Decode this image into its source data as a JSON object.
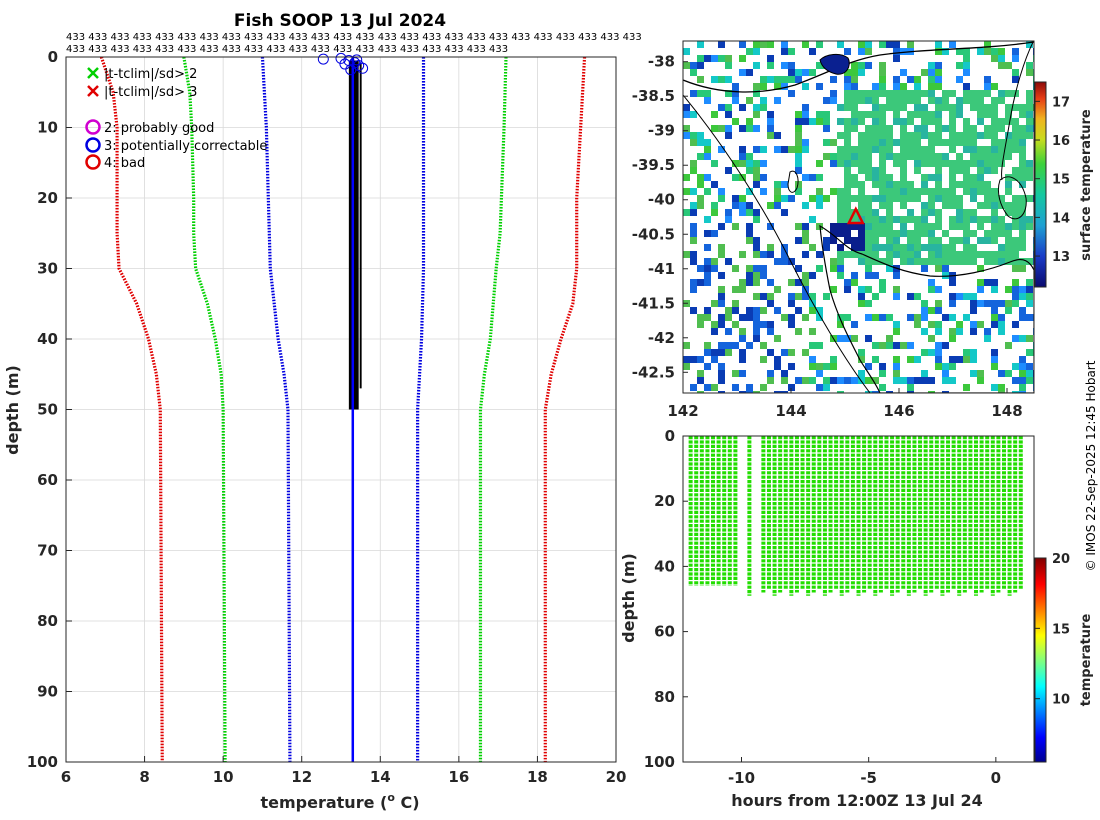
{
  "chart_data": [
    {
      "type": "line",
      "title": "Fish SOOP 13 Jul 2024",
      "xlabel": "temperature (",
      "xlabel_sup": "o",
      "xlabel_end": " C)",
      "ylabel": "depth (m)",
      "xlim": [
        6,
        20
      ],
      "ylim": [
        0,
        100
      ],
      "xticks": [
        "6",
        "8",
        "10",
        "12",
        "14",
        "16",
        "18",
        "20"
      ],
      "yticks": [
        "0",
        "10",
        "20",
        "30",
        "40",
        "50",
        "60",
        "70",
        "80",
        "90",
        "100"
      ],
      "count_row1": "433 433 433 433 433 433 433 433 433 433 433 433 433 433 433 433 433 433 433 433 433 433 433 433 433 433",
      "count_row2": "433 433 433 433 433 433 433 433 433 433 433 433 433 433 433 433 433 433 433 433",
      "legend": [
        {
          "marker": "x",
          "color": "#00d000",
          "label": "|t-tclim|/sd> 2"
        },
        {
          "marker": "x",
          "color": "#e00000",
          "label": "|t-tclim|/sd> 3"
        },
        {
          "marker": "o",
          "color": "#d000d0",
          "label": "2: probably good"
        },
        {
          "marker": "o",
          "color": "#0000e0",
          "label": "3: potentially correctable"
        },
        {
          "marker": "o",
          "color": "#e00000",
          "label": "4: bad"
        }
      ],
      "series": [
        {
          "name": "clim -3sd",
          "color": "#e00000",
          "depth": [
            0,
            5,
            10,
            20,
            25,
            30,
            35,
            40,
            45,
            50,
            100
          ],
          "values": [
            6.9,
            7.2,
            7.3,
            7.3,
            7.3,
            7.35,
            7.8,
            8.1,
            8.3,
            8.4,
            8.45
          ]
        },
        {
          "name": "clim -2sd",
          "color": "#00d000",
          "depth": [
            0,
            5,
            10,
            20,
            25,
            30,
            35,
            40,
            45,
            50,
            100
          ],
          "values": [
            9.0,
            9.15,
            9.2,
            9.25,
            9.25,
            9.3,
            9.6,
            9.8,
            9.95,
            10.0,
            10.05
          ]
        },
        {
          "name": "clim -1sd",
          "color": "#0000e0",
          "depth": [
            0,
            5,
            10,
            20,
            30,
            40,
            45,
            50,
            100
          ],
          "values": [
            11.0,
            11.05,
            11.1,
            11.15,
            11.2,
            11.4,
            11.55,
            11.65,
            11.7
          ]
        },
        {
          "name": "clim +1sd",
          "color": "#0000e0",
          "depth": [
            0,
            10,
            30,
            40,
            45,
            50,
            100
          ],
          "values": [
            15.1,
            15.1,
            15.1,
            15.05,
            15.0,
            14.95,
            14.95
          ]
        },
        {
          "name": "clim +2sd",
          "color": "#00d000",
          "depth": [
            0,
            10,
            25,
            30,
            40,
            45,
            50,
            100
          ],
          "values": [
            17.2,
            17.15,
            17.05,
            16.95,
            16.8,
            16.65,
            16.55,
            16.55
          ]
        },
        {
          "name": "clim +3sd",
          "color": "#e00000",
          "depth": [
            0,
            10,
            20,
            30,
            35,
            40,
            45,
            50,
            100
          ],
          "values": [
            19.2,
            19.1,
            19.0,
            19.0,
            18.9,
            18.6,
            18.35,
            18.2,
            18.2
          ]
        },
        {
          "name": "profile",
          "color": "#0000ff",
          "depth": [
            0,
            2,
            5,
            20,
            50,
            100
          ],
          "values": [
            13.3,
            13.3,
            13.3,
            13.3,
            13.3,
            13.3
          ]
        }
      ]
    },
    {
      "type": "heatmap",
      "xlim": [
        142,
        148.5
      ],
      "ylim": [
        -42.8,
        -37.7
      ],
      "xticks": [
        "142",
        "144",
        "146",
        "148"
      ],
      "yticks": [
        "-38",
        "-38.5",
        "-39",
        "-39.5",
        "-40",
        "-40.5",
        "-41",
        "-41.5",
        "-42",
        "-42.5"
      ],
      "ship_marker": {
        "lon": 145.2,
        "lat": -40.25,
        "color": "#e00000"
      },
      "colorbar": {
        "label": "surface temperature",
        "ticks": [
          "13",
          "14",
          "15",
          "16",
          "17"
        ],
        "range": [
          12.2,
          17.5
        ]
      }
    },
    {
      "type": "scatter",
      "xlabel": "hours from 12:00Z 13 Jul 24",
      "ylabel": "depth (m)",
      "xlim": [
        -12.3,
        1.5
      ],
      "ylim": [
        0,
        100
      ],
      "xticks": [
        "-10",
        "-5",
        "0"
      ],
      "yticks": [
        "0",
        "20",
        "40",
        "60",
        "80",
        "100"
      ],
      "profile_range": [
        -12.0,
        1.2
      ],
      "max_depth": 49,
      "point_color": "#22dd00",
      "colorbar": {
        "label": "temperature",
        "ticks": [
          "10",
          "15",
          "20"
        ],
        "range": [
          5.5,
          20
        ]
      }
    }
  ],
  "credit": "© IMOS 22-Sep-2025 12:45 Hobart"
}
